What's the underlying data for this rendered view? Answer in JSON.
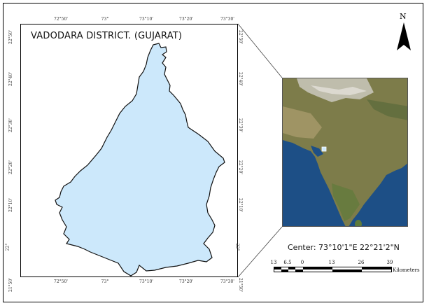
{
  "map": {
    "title": "VADODARA DISTRICT. (GUJARAT)",
    "district_fill": "#cce8fb",
    "district_stroke": "#111111"
  },
  "grid_ticks": {
    "top": [
      "72°50'",
      "73°",
      "73°10'",
      "73°20'",
      "73°30'"
    ],
    "bottom": [
      "72°50'",
      "73°",
      "73°10'",
      "73°20'",
      "73°30'"
    ],
    "left": [
      "22°50'",
      "22°40'",
      "22°30'",
      "22°20'",
      "22°10'",
      "22°",
      "21°50'"
    ],
    "right": [
      "22°50'",
      "22°40'",
      "22°30'",
      "22°20'",
      "22°10'",
      "22°",
      "21°50'"
    ]
  },
  "north_arrow": {
    "label": "N",
    "icon": "north-arrow-icon"
  },
  "inset": {
    "description_icon": "india-satellite-inset",
    "land_color": "#8b8a55",
    "sea_color": "#1d4f86",
    "mountain_color": "#cfcdc4"
  },
  "center": {
    "label": "Center: 73°10'1\"E 22°21'2\"N"
  },
  "scale": {
    "labels": [
      "13",
      "6.5",
      "0",
      "13",
      "26",
      "39"
    ],
    "units": "Kilometers"
  }
}
